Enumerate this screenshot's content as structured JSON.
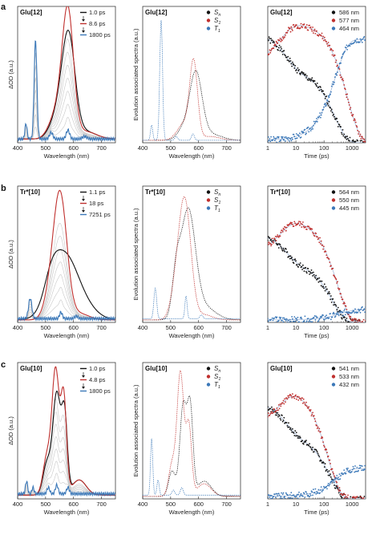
{
  "figure": {
    "panel_labels": [
      "a",
      "b",
      "c"
    ]
  },
  "chart_data": [
    {
      "id": "a-left",
      "row": 0,
      "col": 0,
      "type": "line",
      "title": "Glu[12]",
      "xlabel": "Wavelength (nm)",
      "ylabel": "ΔOD (a.u.)",
      "xlim": [
        400,
        750
      ],
      "xticks": [
        400,
        500,
        600,
        700
      ],
      "ylim": [
        0,
        1.08
      ],
      "legend": {
        "placement": "top-right",
        "arrows": true,
        "entries": [
          {
            "label": "1.0 ps",
            "color": "#111111"
          },
          {
            "label": "8.6 ps",
            "color": "#c0302e"
          },
          {
            "label": "1800 ps",
            "color": "#3b78b8"
          }
        ]
      },
      "series": [
        {
          "color": "#111111",
          "peaks": [
            [
              515,
              0.04,
              20
            ],
            [
              545,
              0.16,
              22
            ],
            [
              582,
              0.8,
              23
            ],
            [
              640,
              0.06,
              40
            ]
          ],
          "base": 0.03
        },
        {
          "color": "#c0302e",
          "peaks": [
            [
              515,
              0.05,
              20
            ],
            [
              545,
              0.2,
              22
            ],
            [
              580,
              0.98,
              20
            ],
            [
              640,
              0.06,
              40
            ]
          ],
          "base": 0.03
        },
        {
          "color": "#3b78b8",
          "peaks": [
            [
              430,
              0.12,
              4
            ],
            [
              464,
              0.78,
              5
            ],
            [
              520,
              0.05,
              6
            ],
            [
              580,
              0.07,
              6
            ],
            [
              640,
              0.02,
              8
            ]
          ],
          "base": 0.03
        }
      ],
      "gray_traces": 7
    },
    {
      "id": "a-mid",
      "row": 0,
      "col": 1,
      "type": "scatter",
      "title": "Glu[12]",
      "xlabel": "Wavelength (nm)",
      "ylabel": "Evolution associated spectra (a.u.)",
      "xlim": [
        400,
        750
      ],
      "xticks": [
        400,
        500,
        600,
        700
      ],
      "ylim": [
        0,
        1.08
      ],
      "legend": {
        "placement": "top-right",
        "entries": [
          {
            "label": "S",
            "sub": "n",
            "color": "#111111"
          },
          {
            "label": "S",
            "sub": "1",
            "color": "#c0302e"
          },
          {
            "label": "T",
            "sub": "1",
            "color": "#3b78b8"
          }
        ]
      },
      "series": [
        {
          "color": "#111111",
          "peaks": [
            [
              545,
              0.08,
              22
            ],
            [
              590,
              0.52,
              22
            ],
            [
              640,
              0.05,
              40
            ]
          ],
          "base": 0.02
        },
        {
          "color": "#c0302e",
          "peaks": [
            [
              520,
              0.03,
              18
            ],
            [
              548,
              0.12,
              18
            ],
            [
              582,
              0.62,
              14
            ],
            [
              640,
              0.03,
              35
            ]
          ],
          "base": 0.02
        },
        {
          "color": "#3b78b8",
          "peaks": [
            [
              432,
              0.12,
              4
            ],
            [
              466,
              0.95,
              5
            ],
            [
              520,
              0.03,
              5
            ],
            [
              580,
              0.05,
              5
            ]
          ],
          "base": 0.02
        }
      ]
    },
    {
      "id": "a-right",
      "row": 0,
      "col": 2,
      "type": "scatter",
      "title": "Glu[12]",
      "xlabel": "Time (ps)",
      "ylabel": "",
      "xscale": "log",
      "xlim": [
        1,
        3000
      ],
      "xticks": [
        1,
        10,
        100,
        1000
      ],
      "ylim": [
        0,
        1.08
      ],
      "legend": {
        "placement": "top-right",
        "entries": [
          {
            "label": "586 nm",
            "color": "#111111"
          },
          {
            "label": "577 nm",
            "color": "#c0302e"
          },
          {
            "label": "464 nm",
            "color": "#3b78b8"
          }
        ]
      },
      "series": [
        {
          "color": "#111111",
          "kind": "decay",
          "a0": 0.88,
          "tau": 240,
          "rise": 0,
          "seed": 1
        },
        {
          "color": "#c0302e",
          "kind": "risedecay",
          "a0": 0.95,
          "tau": 700,
          "rise": 3,
          "seed": 2
        },
        {
          "color": "#3b78b8",
          "kind": "rise",
          "a0": 0.8,
          "tau": 260,
          "seed": 3
        }
      ]
    },
    {
      "id": "b-left",
      "row": 1,
      "col": 0,
      "type": "line",
      "title": "Tr*[10]",
      "xlabel": "Wavelength (nm)",
      "ylabel": "ΔOD (a.u.)",
      "xlim": [
        400,
        750
      ],
      "xticks": [
        400,
        500,
        600,
        700
      ],
      "ylim": [
        0,
        1.08
      ],
      "legend": {
        "placement": "top-right",
        "arrows": true,
        "entries": [
          {
            "label": "1.1 ps",
            "color": "#111111"
          },
          {
            "label": "18 ps",
            "color": "#c0302e"
          },
          {
            "label": "7251 ps",
            "color": "#3b78b8"
          }
        ]
      },
      "series": [
        {
          "color": "#111111",
          "peaks": [
            [
              520,
              0.14,
              25
            ],
            [
              565,
              0.5,
              48
            ],
            [
              640,
              0.08,
              45
            ]
          ],
          "base": 0.02
        },
        {
          "color": "#c0302e",
          "peaks": [
            [
              515,
              0.15,
              22
            ],
            [
              552,
              0.98,
              24
            ],
            [
              620,
              0.05,
              35
            ]
          ],
          "base": 0.02
        },
        {
          "color": "#3b78b8",
          "peaks": [
            [
              445,
              0.16,
              6
            ],
            [
              555,
              0.05,
              5
            ],
            [
              610,
              0.02,
              6
            ]
          ],
          "base": 0.03
        }
      ],
      "gray_traces": 7
    },
    {
      "id": "b-mid",
      "row": 1,
      "col": 1,
      "type": "scatter",
      "title": "Tr*[10]",
      "xlabel": "Wavelength (nm)",
      "ylabel": "Evolution associated spectra (a.u.)",
      "xlim": [
        400,
        750
      ],
      "xticks": [
        400,
        500,
        600,
        700
      ],
      "ylim": [
        0,
        1.08
      ],
      "legend": {
        "placement": "top-right",
        "entries": [
          {
            "label": "S",
            "sub": "n",
            "color": "#111111"
          },
          {
            "label": "S",
            "sub": "1",
            "color": "#c0302e"
          },
          {
            "label": "T",
            "sub": "1",
            "color": "#3b78b8"
          }
        ]
      },
      "series": [
        {
          "color": "#111111",
          "peaks": [
            [
              520,
              0.3,
              14
            ],
            [
              562,
              0.85,
              26
            ],
            [
              620,
              0.1,
              40
            ]
          ],
          "base": 0.02
        },
        {
          "color": "#c0302e",
          "peaks": [
            [
              515,
              0.15,
              18
            ],
            [
              550,
              0.95,
              22
            ],
            [
              620,
              0.04,
              30
            ]
          ],
          "base": 0.02
        },
        {
          "color": "#3b78b8",
          "peaks": [
            [
              445,
              0.24,
              5
            ],
            [
              555,
              0.18,
              4
            ],
            [
              610,
              0.03,
              5
            ]
          ],
          "base": 0.03
        }
      ]
    },
    {
      "id": "b-right",
      "row": 1,
      "col": 2,
      "type": "scatter",
      "title": "Tr*[10]",
      "xlabel": "Time (ps)",
      "ylabel": "",
      "xscale": "log",
      "xlim": [
        1,
        3000
      ],
      "xticks": [
        1,
        10,
        100,
        1000
      ],
      "ylim": [
        0,
        1.08
      ],
      "legend": {
        "placement": "top-right",
        "entries": [
          {
            "label": "564 nm",
            "color": "#111111"
          },
          {
            "label": "550 nm",
            "color": "#c0302e"
          },
          {
            "label": "445 nm",
            "color": "#3b78b8"
          }
        ]
      },
      "series": [
        {
          "color": "#111111",
          "kind": "decay",
          "a0": 0.72,
          "tau": 200,
          "rise": 0,
          "seed": 4
        },
        {
          "color": "#c0302e",
          "kind": "risedecay",
          "a0": 0.82,
          "tau": 300,
          "rise": 3,
          "seed": 5
        },
        {
          "color": "#3b78b8",
          "kind": "rise",
          "a0": 0.08,
          "tau": 400,
          "seed": 6
        }
      ]
    },
    {
      "id": "c-left",
      "row": 2,
      "col": 0,
      "type": "line",
      "title": "Glu[10]",
      "xlabel": "Wavelength (nm)",
      "ylabel": "ΔOD (a.u.)",
      "xlim": [
        400,
        750
      ],
      "xticks": [
        400,
        500,
        600,
        700
      ],
      "ylim": [
        0,
        1.08
      ],
      "legend": {
        "placement": "top-right",
        "arrows": true,
        "entries": [
          {
            "label": "1.0 ps",
            "color": "#111111"
          },
          {
            "label": "4.8 ps",
            "color": "#c0302e"
          },
          {
            "label": "1800 ps",
            "color": "#3b78b8"
          }
        ]
      },
      "series": [
        {
          "color": "#111111",
          "peaks": [
            [
              505,
              0.25,
              14
            ],
            [
              540,
              0.8,
              14
            ],
            [
              568,
              0.6,
              10
            ],
            [
              620,
              0.12,
              25
            ]
          ],
          "base": 0.03
        },
        {
          "color": "#c0302e",
          "peaks": [
            [
              505,
              0.3,
              14
            ],
            [
              536,
              0.98,
              13
            ],
            [
              565,
              0.75,
              10
            ],
            [
              620,
              0.12,
              25
            ]
          ],
          "base": 0.03
        },
        {
          "color": "#3b78b8",
          "peaks": [
            [
              432,
              0.1,
              4
            ],
            [
              455,
              0.05,
              4
            ],
            [
              510,
              0.05,
              5
            ],
            [
              540,
              0.07,
              5
            ],
            [
              580,
              0.05,
              5
            ]
          ],
          "base": 0.04
        }
      ],
      "gray_traces": 7
    },
    {
      "id": "c-mid",
      "row": 2,
      "col": 1,
      "type": "scatter",
      "title": "Glu[10]",
      "xlabel": "Wavelength (nm)",
      "ylabel": "Evolution associated spectra (a.u.)",
      "xlim": [
        400,
        750
      ],
      "xticks": [
        400,
        500,
        600,
        700
      ],
      "ylim": [
        0,
        1.08
      ],
      "legend": {
        "placement": "top-right",
        "entries": [
          {
            "label": "S",
            "sub": "n",
            "color": "#111111"
          },
          {
            "label": "S",
            "sub": "1",
            "color": "#c0302e"
          },
          {
            "label": "T",
            "sub": "1",
            "color": "#3b78b8"
          }
        ]
      },
      "series": [
        {
          "color": "#111111",
          "peaks": [
            [
              505,
              0.2,
              12
            ],
            [
              545,
              0.72,
              12
            ],
            [
              570,
              0.68,
              10
            ],
            [
              620,
              0.12,
              25
            ]
          ],
          "base": 0.02
        },
        {
          "color": "#c0302e",
          "peaks": [
            [
              505,
              0.25,
              12
            ],
            [
              535,
              0.98,
              12
            ],
            [
              565,
              0.55,
              10
            ],
            [
              620,
              0.1,
              25
            ]
          ],
          "base": 0.02
        },
        {
          "color": "#3b78b8",
          "peaks": [
            [
              432,
              0.45,
              4
            ],
            [
              455,
              0.12,
              4
            ],
            [
              510,
              0.04,
              5
            ],
            [
              540,
              0.06,
              5
            ]
          ],
          "base": 0.03
        }
      ]
    },
    {
      "id": "c-right",
      "row": 2,
      "col": 2,
      "type": "scatter",
      "title": "Glu[10]",
      "xlabel": "Time (ps)",
      "ylabel": "",
      "xscale": "log",
      "xlim": [
        1,
        3000
      ],
      "xticks": [
        1,
        10,
        100,
        1000
      ],
      "ylim": [
        0,
        1.08
      ],
      "legend": {
        "placement": "top-right",
        "entries": [
          {
            "label": "541 nm",
            "color": "#111111"
          },
          {
            "label": "533 nm",
            "color": "#c0302e"
          },
          {
            "label": "432 nm",
            "color": "#3b78b8"
          }
        ]
      },
      "series": [
        {
          "color": "#111111",
          "kind": "decay",
          "a0": 0.78,
          "tau": 160,
          "rise": 0,
          "seed": 7
        },
        {
          "color": "#c0302e",
          "kind": "risedecay",
          "a0": 0.88,
          "tau": 140,
          "rise": 3,
          "seed": 8
        },
        {
          "color": "#3b78b8",
          "kind": "rise",
          "a0": 0.22,
          "tau": 280,
          "seed": 9
        }
      ]
    }
  ]
}
